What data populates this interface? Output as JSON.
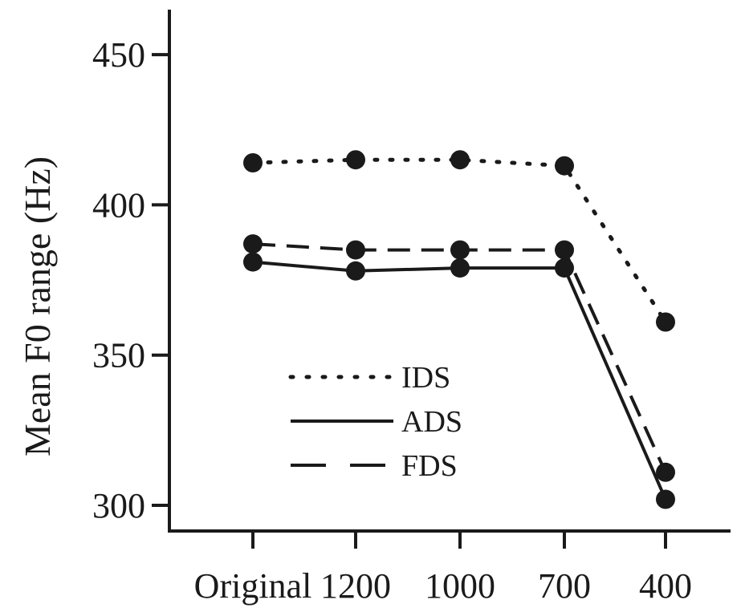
{
  "chart_data": {
    "type": "line",
    "title": "",
    "xlabel": "",
    "ylabel": "Mean F0 range (Hz)",
    "categories": [
      "Original",
      "1200",
      "1000",
      "700",
      "400"
    ],
    "ylim": [
      290,
      462
    ],
    "yticks": [
      300,
      350,
      400,
      450
    ],
    "grid": false,
    "legend_position": "bottom-left",
    "series": [
      {
        "name": "IDS",
        "style": "dotted",
        "values": [
          414,
          415,
          415,
          413,
          361
        ]
      },
      {
        "name": "ADS",
        "style": "solid",
        "values": [
          381,
          378,
          379,
          379,
          302
        ]
      },
      {
        "name": "FDS",
        "style": "dashed",
        "values": [
          387,
          385,
          385,
          385,
          311
        ]
      }
    ],
    "colors": {
      "line": "#1a1a1a",
      "marker": "#1a1a1a",
      "background": "#ffffff"
    }
  }
}
